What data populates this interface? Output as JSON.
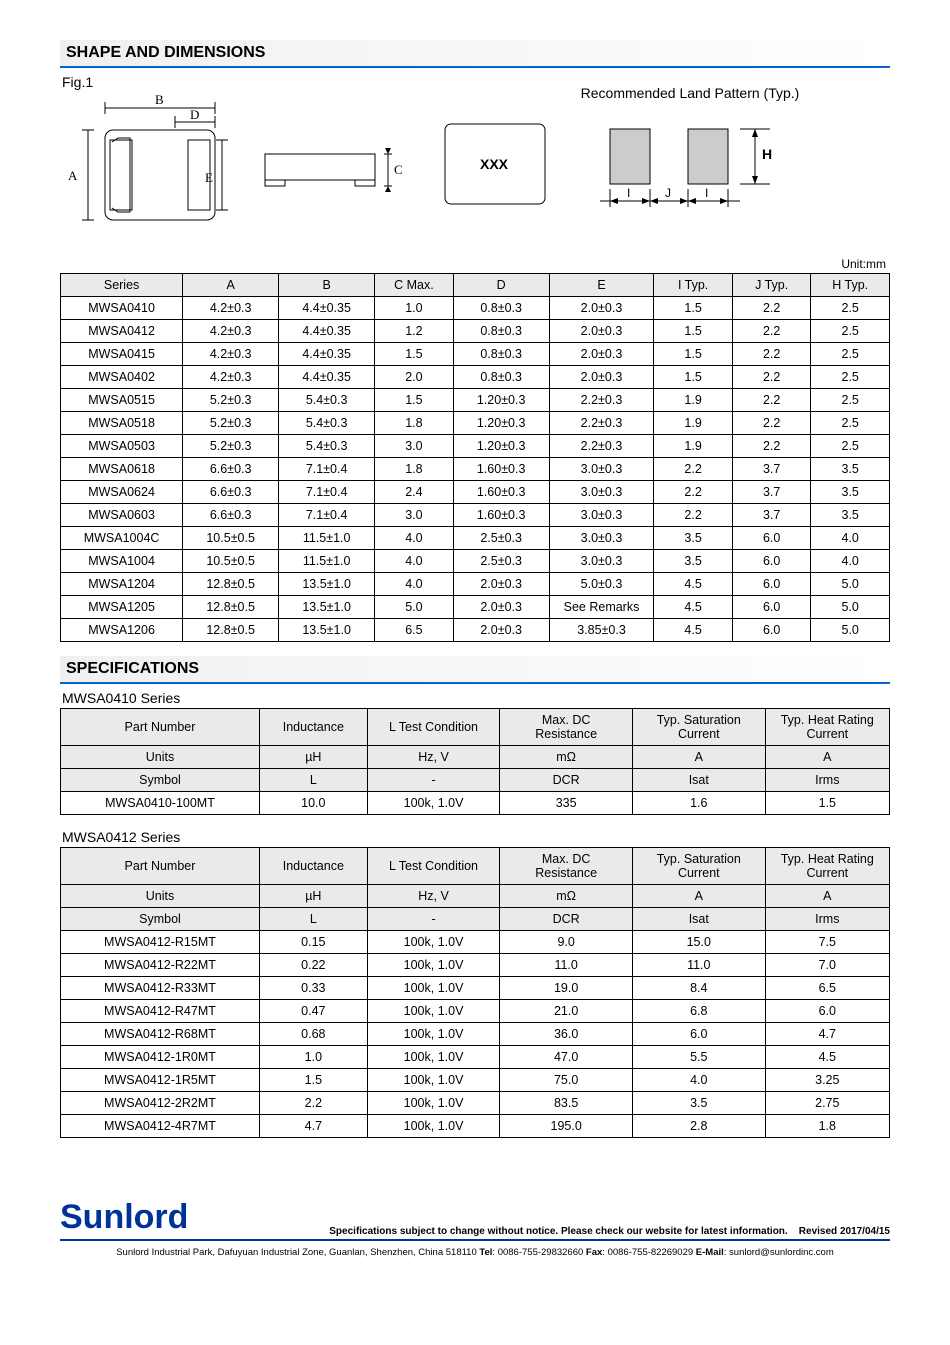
{
  "section_shape": "SHAPE AND DIMENSIONS",
  "fig_label": "Fig.1",
  "land_pattern_label": "Recommended Land Pattern (Typ.)",
  "diagram_labels": {
    "A": "A",
    "B": "B",
    "C": "C",
    "D": "D",
    "E": "E",
    "XXX": "XXX",
    "H": "H",
    "I": "I",
    "J": "J"
  },
  "unit_label": "Unit:mm",
  "dim_table": {
    "columns": [
      "Series",
      "A",
      "B",
      "C Max.",
      "D",
      "E",
      "I Typ.",
      "J Typ.",
      "H Typ."
    ],
    "col_widths_pct": [
      14,
      11,
      11,
      9,
      11,
      12,
      9,
      9,
      9
    ],
    "rows": [
      [
        "MWSA0410",
        "4.2±0.3",
        "4.4±0.35",
        "1.0",
        "0.8±0.3",
        "2.0±0.3",
        "1.5",
        "2.2",
        "2.5"
      ],
      [
        "MWSA0412",
        "4.2±0.3",
        "4.4±0.35",
        "1.2",
        "0.8±0.3",
        "2.0±0.3",
        "1.5",
        "2.2",
        "2.5"
      ],
      [
        "MWSA0415",
        "4.2±0.3",
        "4.4±0.35",
        "1.5",
        "0.8±0.3",
        "2.0±0.3",
        "1.5",
        "2.2",
        "2.5"
      ],
      [
        "MWSA0402",
        "4.2±0.3",
        "4.4±0.35",
        "2.0",
        "0.8±0.3",
        "2.0±0.3",
        "1.5",
        "2.2",
        "2.5"
      ],
      [
        "MWSA0515",
        "5.2±0.3",
        "5.4±0.3",
        "1.5",
        "1.20±0.3",
        "2.2±0.3",
        "1.9",
        "2.2",
        "2.5"
      ],
      [
        "MWSA0518",
        "5.2±0.3",
        "5.4±0.3",
        "1.8",
        "1.20±0.3",
        "2.2±0.3",
        "1.9",
        "2.2",
        "2.5"
      ],
      [
        "MWSA0503",
        "5.2±0.3",
        "5.4±0.3",
        "3.0",
        "1.20±0.3",
        "2.2±0.3",
        "1.9",
        "2.2",
        "2.5"
      ],
      [
        "MWSA0618",
        "6.6±0.3",
        "7.1±0.4",
        "1.8",
        "1.60±0.3",
        "3.0±0.3",
        "2.2",
        "3.7",
        "3.5"
      ],
      [
        "MWSA0624",
        "6.6±0.3",
        "7.1±0.4",
        "2.4",
        "1.60±0.3",
        "3.0±0.3",
        "2.2",
        "3.7",
        "3.5"
      ],
      [
        "MWSA0603",
        "6.6±0.3",
        "7.1±0.4",
        "3.0",
        "1.60±0.3",
        "3.0±0.3",
        "2.2",
        "3.7",
        "3.5"
      ],
      [
        "MWSA1004C",
        "10.5±0.5",
        "11.5±1.0",
        "4.0",
        "2.5±0.3",
        "3.0±0.3",
        "3.5",
        "6.0",
        "4.0"
      ],
      [
        "MWSA1004",
        "10.5±0.5",
        "11.5±1.0",
        "4.0",
        "2.5±0.3",
        "3.0±0.3",
        "3.5",
        "6.0",
        "4.0"
      ],
      [
        "MWSA1204",
        "12.8±0.5",
        "13.5±1.0",
        "4.0",
        "2.0±0.3",
        "5.0±0.3",
        "4.5",
        "6.0",
        "5.0"
      ],
      [
        "MWSA1205",
        "12.8±0.5",
        "13.5±1.0",
        "5.0",
        "2.0±0.3",
        "See Remarks",
        "4.5",
        "6.0",
        "5.0"
      ],
      [
        "MWSA1206",
        "12.8±0.5",
        "13.5±1.0",
        "6.5",
        "2.0±0.3",
        "3.85±0.3",
        "4.5",
        "6.0",
        "5.0"
      ]
    ]
  },
  "section_spec": "SPECIFICATIONS",
  "spec_common": {
    "columns": [
      "Part Number",
      "Inductance",
      "L Test Condition",
      "Max. DC Resistance",
      "Typ. Saturation Current",
      "Typ. Heat Rating Current"
    ],
    "col_widths_pct": [
      24,
      13,
      16,
      16,
      16,
      15
    ],
    "units": [
      "Units",
      "µH",
      "Hz, V",
      "mΩ",
      "A",
      "A"
    ],
    "symbol": [
      "Symbol",
      "L",
      "-",
      "DCR",
      "Isat",
      "Irms"
    ]
  },
  "spec1": {
    "title": "MWSA0410 Series",
    "rows": [
      [
        "MWSA0410-100MT",
        "10.0",
        "100k, 1.0V",
        "335",
        "1.6",
        "1.5"
      ]
    ]
  },
  "spec2": {
    "title": "MWSA0412 Series",
    "rows": [
      [
        "MWSA0412-R15MT",
        "0.15",
        "100k, 1.0V",
        "9.0",
        "15.0",
        "7.5"
      ],
      [
        "MWSA0412-R22MT",
        "0.22",
        "100k, 1.0V",
        "11.0",
        "11.0",
        "7.0"
      ],
      [
        "MWSA0412-R33MT",
        "0.33",
        "100k, 1.0V",
        "19.0",
        "8.4",
        "6.5"
      ],
      [
        "MWSA0412-R47MT",
        "0.47",
        "100k, 1.0V",
        "21.0",
        "6.8",
        "6.0"
      ],
      [
        "MWSA0412-R68MT",
        "0.68",
        "100k, 1.0V",
        "36.0",
        "6.0",
        "4.7"
      ],
      [
        "MWSA0412-1R0MT",
        "1.0",
        "100k, 1.0V",
        "47.0",
        "5.5",
        "4.5"
      ],
      [
        "MWSA0412-1R5MT",
        "1.5",
        "100k, 1.0V",
        "75.0",
        "4.0",
        "3.25"
      ],
      [
        "MWSA0412-2R2MT",
        "2.2",
        "100k, 1.0V",
        "83.5",
        "3.5",
        "2.75"
      ],
      [
        "MWSA0412-4R7MT",
        "4.7",
        "100k, 1.0V",
        "195.0",
        "2.8",
        "1.8"
      ]
    ]
  },
  "footer": {
    "logo": "Sunlord",
    "note": "Specifications subject to change without notice. Please check our website for latest information.    Revised 2017/04/15",
    "addr_prefix": "Sunlord Industrial Park, Dafuyuan Industrial Zone, Guanlan, Shenzhen, China 518110 ",
    "tel_label": "Tel",
    "tel": ": 0086-755-29832660 ",
    "fax_label": "Fax",
    "fax": ": 0086-755-82269029 ",
    "email_label": "E-Mail",
    "email": ": sunlord@sunlordinc.com"
  }
}
